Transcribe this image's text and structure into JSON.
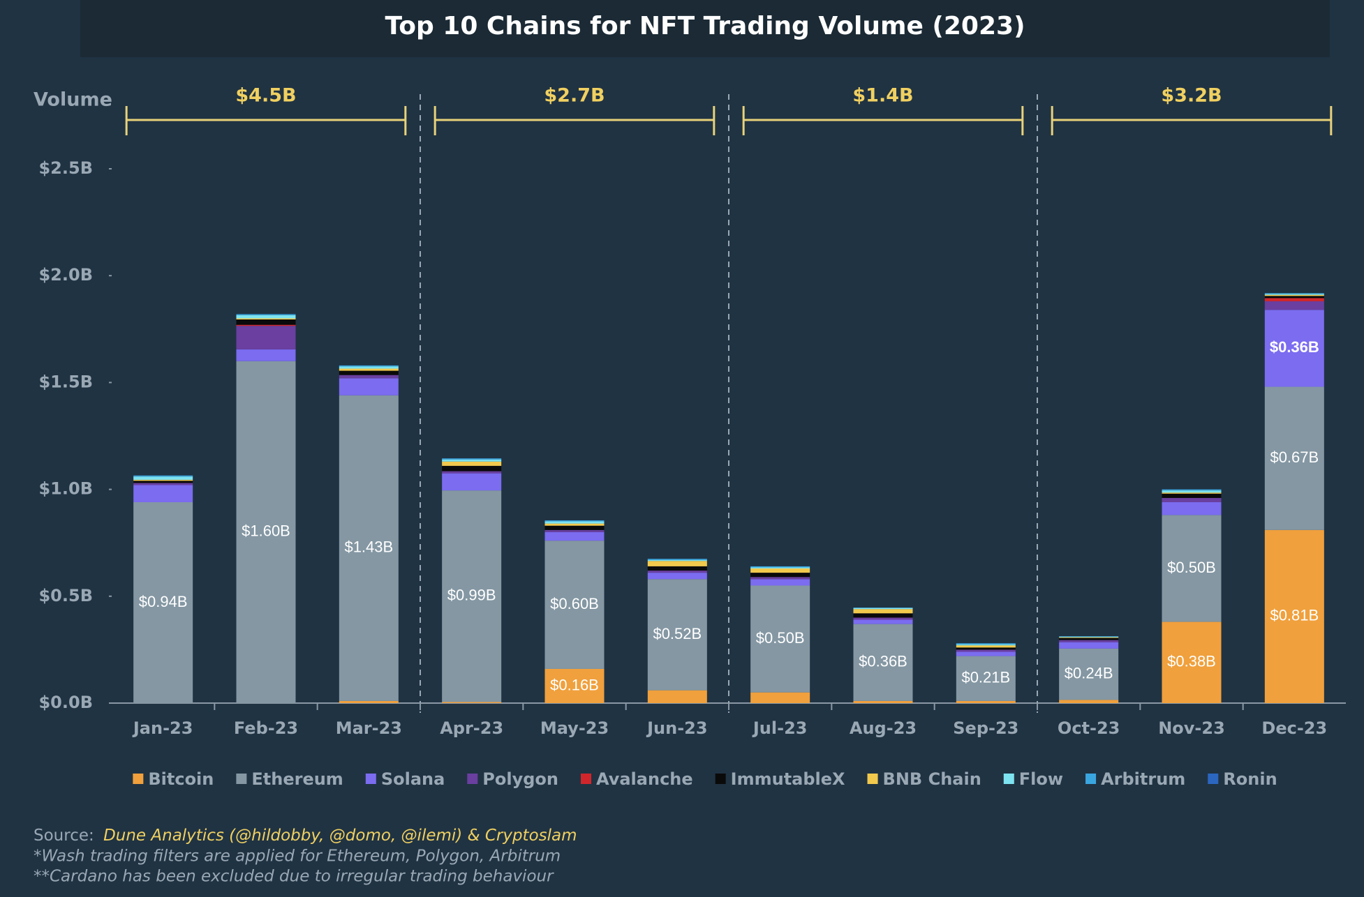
{
  "chart_data": {
    "type": "stacked_bar",
    "title": "Top 10 Chains for NFT Trading Volume (2023)",
    "y_label": "Volume",
    "annotations": [
      "$4.5B",
      "$2.7B",
      "$1.4B",
      "$3.2B"
    ],
    "categories": [
      "Jan-23",
      "Feb-23",
      "Mar-23",
      "Apr-23",
      "May-23",
      "Jun-23",
      "Jul-23",
      "Aug-23",
      "Sep-23",
      "Oct-23",
      "Nov-23",
      "Dec-23"
    ],
    "ylim": [
      0,
      2.5
    ],
    "yticks": [
      {
        "value": 0,
        "label": "$0.0B"
      },
      {
        "value": 0.5,
        "label": "$0.5B"
      },
      {
        "value": 1.0,
        "label": "$1.0B"
      },
      {
        "value": 1.5,
        "label": "$1.5B"
      },
      {
        "value": 2.0,
        "label": "$2.0B"
      },
      {
        "value": 2.5,
        "label": "$2.5B"
      }
    ],
    "series": [
      {
        "name": "Bitcoin",
        "color": "#f0a03c",
        "values": [
          0,
          0,
          0.01,
          0.005,
          0.16,
          0.06,
          0.05,
          0.01,
          0.01,
          0.015,
          0.38,
          0.81
        ],
        "value_labels": [
          null,
          null,
          null,
          null,
          "$0.16B",
          null,
          null,
          null,
          null,
          null,
          "$0.38B",
          "$0.81B"
        ]
      },
      {
        "name": "Ethereum",
        "color": "#8497a3",
        "values": [
          0.94,
          1.6,
          1.43,
          0.99,
          0.6,
          0.52,
          0.5,
          0.36,
          0.21,
          0.24,
          0.5,
          0.67
        ],
        "value_labels": [
          "$0.94B",
          "$1.60B",
          "$1.43B",
          "$0.99B",
          "$0.60B",
          "$0.52B",
          "$0.50B",
          "$0.36B",
          "$0.21B",
          "$0.24B",
          "$0.50B",
          "$0.67B"
        ]
      },
      {
        "name": "Solana",
        "color": "#7b6cf0",
        "values": [
          0.08,
          0.055,
          0.08,
          0.08,
          0.04,
          0.03,
          0.03,
          0.02,
          0.02,
          0.03,
          0.06,
          0.36
        ],
        "value_labels": [
          null,
          null,
          null,
          null,
          null,
          null,
          null,
          null,
          null,
          null,
          null,
          "$0.36B"
        ]
      },
      {
        "name": "Polygon",
        "color": "#6a3fa0",
        "values": [
          0.01,
          0.11,
          0.015,
          0.01,
          0.01,
          0.01,
          0.01,
          0.01,
          0.01,
          0.01,
          0.02,
          0.04
        ]
      },
      {
        "name": "Avalanche",
        "color": "#d0262b",
        "values": [
          0,
          0.005,
          0,
          0,
          0,
          0,
          0,
          0,
          0,
          0,
          0,
          0.015
        ]
      },
      {
        "name": "ImmutableX",
        "color": "#0a0a0a",
        "values": [
          0.01,
          0.025,
          0.02,
          0.025,
          0.02,
          0.02,
          0.02,
          0.02,
          0.01,
          0.01,
          0.02,
          0.01
        ]
      },
      {
        "name": "BNB Chain",
        "color": "#f2c94c",
        "values": [
          0.005,
          0.005,
          0.01,
          0.02,
          0.01,
          0.025,
          0.02,
          0.02,
          0.01,
          0.003,
          0.005,
          0.005
        ]
      },
      {
        "name": "Flow",
        "color": "#7ee3f0",
        "values": [
          0.015,
          0.015,
          0.01,
          0.01,
          0.01,
          0.005,
          0.005,
          0.005,
          0.005,
          0.003,
          0.01,
          0.005
        ]
      },
      {
        "name": "Arbitrum",
        "color": "#3aa6e0",
        "values": [
          0.005,
          0.005,
          0.005,
          0.005,
          0.005,
          0.005,
          0.005,
          0.002,
          0.005,
          0.002,
          0.005,
          0.003
        ]
      },
      {
        "name": "Ronin",
        "color": "#2b66c0",
        "values": [
          0,
          0,
          0,
          0,
          0,
          0,
          0,
          0,
          0,
          0,
          0,
          0
        ]
      }
    ],
    "source_label": "Source:",
    "source": "Dune Analytics (@hildobby, @domo, @ilemi) & Cryptoslam",
    "notes": [
      "*Wash trading filters are applied for Ethereum, Polygon, Arbitrum",
      "**Cardano has been excluded due to irregular trading behaviour"
    ]
  }
}
